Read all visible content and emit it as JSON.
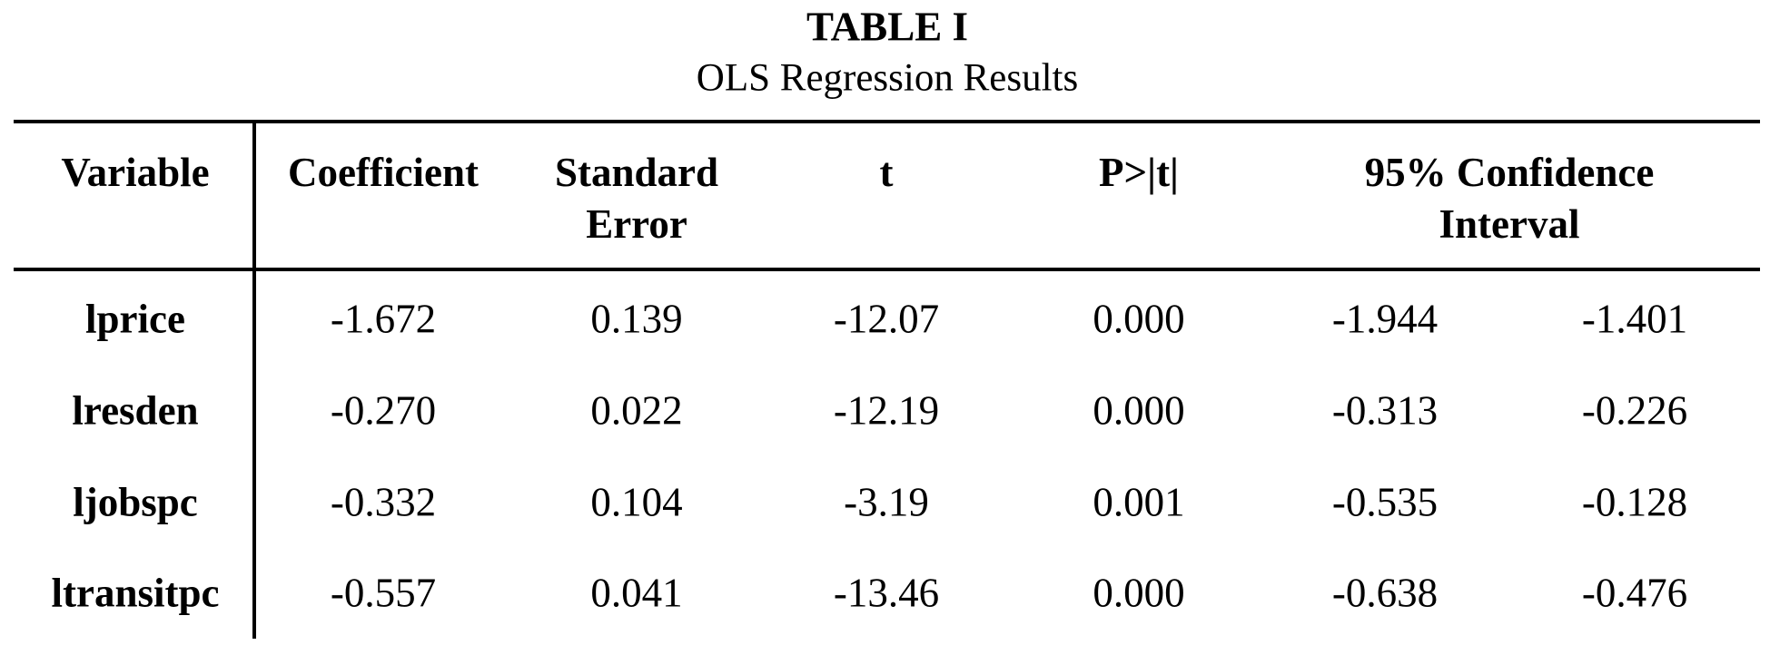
{
  "header": {
    "title": "TABLE I",
    "subtitle": "OLS Regression Results"
  },
  "table": {
    "columns": [
      "Variable",
      "Coefficient",
      "Standard Error",
      "t",
      "P>|t|",
      "95% Confidence Interval"
    ],
    "rows": [
      [
        "lprice",
        "-1.672",
        "0.139",
        "-12.07",
        "0.000",
        "-1.944",
        "-1.401"
      ],
      [
        "lresden",
        "-0.270",
        "0.022",
        "-12.19",
        "0.000",
        "-0.313",
        "-0.226"
      ],
      [
        "ljobspc",
        "-0.332",
        "0.104",
        "-3.19",
        "0.001",
        "-0.535",
        "-0.128"
      ],
      [
        "ltransitpc",
        "-0.557",
        "0.041",
        "-13.46",
        "0.000",
        "-0.638",
        "-0.476"
      ]
    ]
  }
}
